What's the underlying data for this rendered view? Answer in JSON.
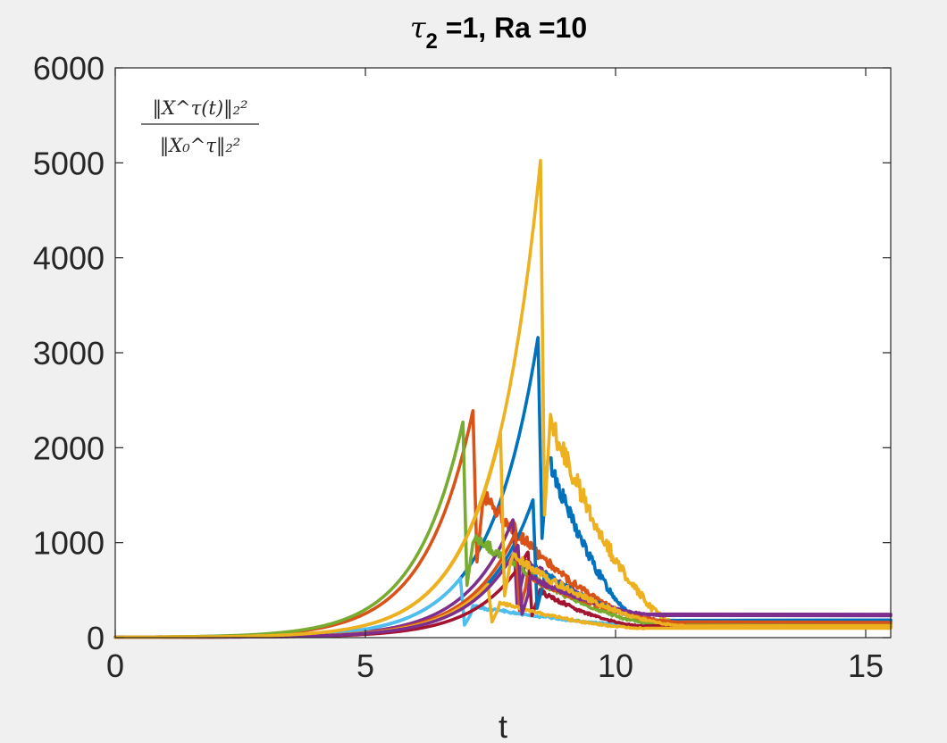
{
  "chart_data": {
    "type": "line",
    "title": {
      "tau": "τ",
      "tau_sub": "2",
      "rest": " =1, Ra =10"
    },
    "xlabel": "t",
    "ylabel": "",
    "xlim": [
      0,
      15.5
    ],
    "ylim": [
      0,
      6000
    ],
    "xticks": [
      0,
      5,
      10,
      15
    ],
    "yticks": [
      0,
      1000,
      2000,
      3000,
      4000,
      5000,
      6000
    ],
    "grid": false,
    "box": true,
    "annotation": {
      "numerator": "‖X^τ(t)‖₂²",
      "denominator": "‖X₀^τ‖₂²",
      "placement": "top-left"
    },
    "colors": {
      "background": "#f0f0f0",
      "axes_bg": "#ffffff",
      "axis": "#262626"
    },
    "series": [
      {
        "color": "#0072BD",
        "peak_t": 8.45,
        "peak": 3160,
        "after": 1900,
        "final": 185
      },
      {
        "color": "#D95319",
        "peak_t": 7.15,
        "peak": 2390,
        "after": 1450,
        "final": 145
      },
      {
        "color": "#EDB120",
        "peak_t": 8.5,
        "peak": 5020,
        "after": 2350,
        "final": 110
      },
      {
        "color": "#7E2F8E",
        "peak_t": 7.95,
        "peak": 1240,
        "after": 650,
        "final": 245
      },
      {
        "color": "#77AC30",
        "peak_t": 6.95,
        "peak": 2270,
        "after": 1000,
        "final": 135
      },
      {
        "color": "#4DBEEE",
        "peak_t": 6.9,
        "peak": 620,
        "after": 240,
        "final": 105
      },
      {
        "color": "#A2142F",
        "peak_t": 8.25,
        "peak": 900,
        "after": 420,
        "final": 120
      },
      {
        "color": "#0072BD",
        "peak_t": 8.35,
        "peak": 1450,
        "after": 560,
        "final": 175
      },
      {
        "color": "#D95319",
        "peak_t": 8.0,
        "peak": 1100,
        "after": 520,
        "final": 160
      },
      {
        "color": "#EDB120",
        "peak_t": 7.45,
        "peak": 560,
        "after": 300,
        "final": 100
      },
      {
        "color": "#7E2F8E",
        "peak_t": 8.05,
        "peak": 970,
        "after": 450,
        "final": 230
      },
      {
        "color": "#EDB120",
        "peak_t": 7.7,
        "peak": 2140,
        "after": 800,
        "final": 125
      }
    ]
  }
}
